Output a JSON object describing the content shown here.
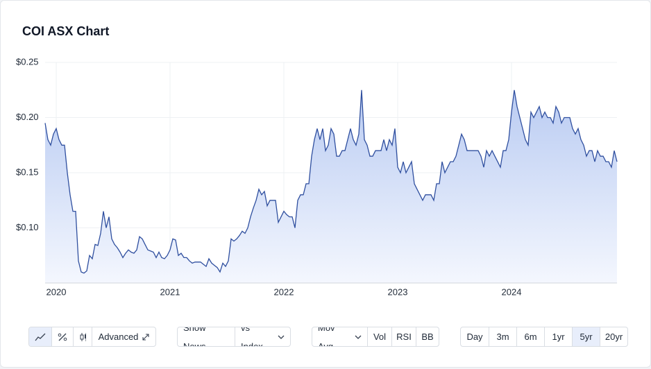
{
  "chart_data": {
    "type": "area",
    "title": "COI ASX Chart",
    "categories": [
      null,
      null,
      null,
      null,
      "2020",
      null,
      null,
      null,
      null,
      null,
      null,
      null,
      null,
      null,
      null,
      null,
      null,
      null,
      null,
      null,
      null,
      null,
      null,
      null,
      null,
      null,
      null,
      null,
      null,
      null,
      null,
      null,
      null,
      null,
      null,
      null,
      null,
      null,
      null,
      null,
      null,
      null,
      null,
      null,
      null,
      "2021",
      null,
      null,
      null,
      null,
      null,
      null,
      null,
      null,
      null,
      null,
      null,
      null,
      null,
      null,
      null,
      null,
      null,
      null,
      null,
      null,
      null,
      null,
      null,
      null,
      null,
      null,
      null,
      null,
      null,
      null,
      null,
      null,
      null,
      null,
      null,
      null,
      null,
      null,
      null,
      null,
      "2022",
      null,
      null,
      null,
      null,
      null,
      null,
      null,
      null,
      null,
      null,
      null,
      null,
      null,
      null,
      null,
      null,
      null,
      null,
      null,
      null,
      null,
      null,
      null,
      null,
      null,
      null,
      null,
      null,
      null,
      null,
      null,
      null,
      null,
      null,
      null,
      null,
      null,
      null,
      null,
      null,
      "2023",
      null,
      null,
      null,
      null,
      null,
      null,
      null,
      null,
      null,
      null,
      null,
      null,
      null,
      null,
      null,
      null,
      null,
      null,
      null,
      null,
      null,
      null,
      null,
      null,
      null,
      null,
      null,
      null,
      null,
      null,
      null,
      null,
      null,
      null,
      null,
      null,
      null,
      null,
      null,
      null,
      "2024",
      null,
      null,
      null,
      null,
      null,
      null,
      null,
      null,
      null,
      null,
      null,
      null,
      null,
      null,
      null,
      null,
      null,
      null,
      null,
      null,
      null,
      null,
      null,
      null,
      null,
      null,
      null,
      null,
      null,
      null,
      null,
      null,
      null,
      null,
      null,
      null,
      null,
      null
    ],
    "values": [
      0.195,
      0.18,
      0.175,
      0.185,
      0.19,
      0.18,
      0.175,
      0.175,
      0.15,
      0.13,
      0.115,
      0.115,
      0.07,
      0.06,
      0.059,
      0.061,
      0.075,
      0.072,
      0.085,
      0.084,
      0.095,
      0.115,
      0.1,
      0.11,
      0.09,
      0.085,
      0.082,
      0.078,
      0.073,
      0.077,
      0.08,
      0.078,
      0.077,
      0.08,
      0.092,
      0.09,
      0.085,
      0.08,
      0.079,
      0.078,
      0.073,
      0.078,
      0.073,
      0.072,
      0.075,
      0.08,
      0.09,
      0.089,
      0.075,
      0.077,
      0.073,
      0.073,
      0.07,
      0.068,
      0.069,
      0.069,
      0.069,
      0.067,
      0.065,
      0.072,
      0.068,
      0.066,
      0.064,
      0.06,
      0.068,
      0.065,
      0.07,
      0.09,
      0.088,
      0.09,
      0.093,
      0.097,
      0.095,
      0.1,
      0.11,
      0.118,
      0.125,
      0.135,
      0.13,
      0.133,
      0.12,
      0.125,
      0.125,
      0.125,
      0.105,
      0.11,
      0.115,
      0.112,
      0.11,
      0.11,
      0.1,
      0.125,
      0.13,
      0.13,
      0.14,
      0.14,
      0.165,
      0.18,
      0.19,
      0.18,
      0.19,
      0.17,
      0.175,
      0.19,
      0.185,
      0.165,
      0.165,
      0.17,
      0.17,
      0.18,
      0.19,
      0.18,
      0.175,
      0.185,
      0.225,
      0.18,
      0.175,
      0.165,
      0.165,
      0.17,
      0.17,
      0.17,
      0.18,
      0.17,
      0.18,
      0.175,
      0.19,
      0.155,
      0.15,
      0.16,
      0.15,
      0.155,
      0.16,
      0.14,
      0.135,
      0.13,
      0.125,
      0.13,
      0.13,
      0.13,
      0.125,
      0.14,
      0.14,
      0.16,
      0.15,
      0.155,
      0.16,
      0.16,
      0.165,
      0.175,
      0.185,
      0.18,
      0.17,
      0.17,
      0.17,
      0.17,
      0.17,
      0.165,
      0.155,
      0.17,
      0.165,
      0.17,
      0.165,
      0.16,
      0.155,
      0.17,
      0.17,
      0.18,
      0.205,
      0.225,
      0.21,
      0.2,
      0.19,
      0.18,
      0.175,
      0.205,
      0.2,
      0.205,
      0.21,
      0.2,
      0.205,
      0.2,
      0.2,
      0.195,
      0.21,
      0.205,
      0.195,
      0.2,
      0.2,
      0.2,
      0.19,
      0.185,
      0.19,
      0.18,
      0.175,
      0.165,
      0.17,
      0.17,
      0.16,
      0.17,
      0.165,
      0.165,
      0.16,
      0.16,
      0.155,
      0.17,
      0.16
    ],
    "color": "#2f4f9f",
    "ylim": [
      0.05,
      0.25
    ],
    "yticks": [
      {
        "value": 0.1,
        "label": "$0.10"
      },
      {
        "value": 0.15,
        "label": "$0.15"
      },
      {
        "value": 0.2,
        "label": "$0.20"
      },
      {
        "value": 0.25,
        "label": "$0.25"
      }
    ],
    "grid": true
  },
  "controls": {
    "advanced": "Advanced",
    "news": [
      "Show News",
      "vs Index"
    ],
    "indicators": [
      "Mov Avg",
      "Vol",
      "RSI",
      "BB"
    ],
    "ranges": [
      "Day",
      "3m",
      "6m",
      "1yr",
      "5yr",
      "20yr"
    ],
    "active_range": "5yr"
  }
}
